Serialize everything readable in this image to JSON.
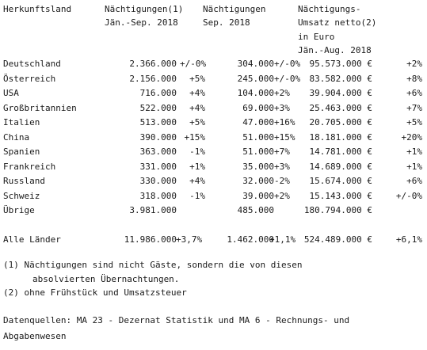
{
  "header": {
    "country": "Herkunftsland",
    "col1": [
      "Nächtigungen(1)",
      "Jän.-Sep. 2018"
    ],
    "col2": [
      "Nächtigungen",
      "Sep. 2018"
    ],
    "col3": [
      "Nächtigungs-",
      "Umsatz netto(2)",
      "in Euro",
      "Jän.-Aug. 2018"
    ]
  },
  "rows": [
    {
      "country": "Deutschland",
      "n1": "2.366.000",
      "p1": "+/-0%",
      "n2": "304.000",
      "p2": "+/-0%",
      "eur": "95.573.000 €",
      "p3": "+2%"
    },
    {
      "country": "Österreich",
      "n1": "2.156.000",
      "p1": "+5%",
      "n2": "245.000",
      "p2": "+/-0%",
      "eur": "83.582.000 €",
      "p3": "+8%"
    },
    {
      "country": "USA",
      "n1": "716.000",
      "p1": "+4%",
      "n2": "104.000",
      "p2": "+2%",
      "eur": "39.904.000 €",
      "p3": "+6%"
    },
    {
      "country": "Großbritannien",
      "n1": "522.000",
      "p1": "+4%",
      "n2": "69.000",
      "p2": "+3%",
      "eur": "25.463.000 €",
      "p3": "+7%"
    },
    {
      "country": "Italien",
      "n1": "513.000",
      "p1": "+5%",
      "n2": "47.000",
      "p2": "+16%",
      "eur": "20.705.000 €",
      "p3": "+5%"
    },
    {
      "country": "China",
      "n1": "390.000",
      "p1": "+15%",
      "n2": "51.000",
      "p2": "+15%",
      "eur": "18.181.000 €",
      "p3": "+20%"
    },
    {
      "country": "Spanien",
      "n1": "363.000",
      "p1": "-1%",
      "n2": "51.000",
      "p2": "+7%",
      "eur": "14.781.000 €",
      "p3": "+1%"
    },
    {
      "country": "Frankreich",
      "n1": "331.000",
      "p1": "+1%",
      "n2": "35.000",
      "p2": "+3%",
      "eur": "14.689.000 €",
      "p3": "+1%"
    },
    {
      "country": "Russland",
      "n1": "330.000",
      "p1": "+4%",
      "n2": "32.000",
      "p2": "-2%",
      "eur": "15.674.000 €",
      "p3": "+6%"
    },
    {
      "country": "Schweiz",
      "n1": "318.000",
      "p1": "-1%",
      "n2": "39.000",
      "p2": "+2%",
      "eur": "15.143.000 €",
      "p3": "+/-0%"
    },
    {
      "country": "Übrige",
      "n1": "3.981.000",
      "p1": "",
      "n2": "485.000",
      "p2": "",
      "eur": "180.794.000 €",
      "p3": ""
    }
  ],
  "total": {
    "country": "Alle Länder",
    "n1": "11.986.000",
    "p1": "+3,7%",
    "n2": "1.462.000",
    "p2": "+1,1%",
    "eur": "524.489.000 €",
    "p3": "+6,1%"
  },
  "notes": {
    "n1_line1": "(1) Nächtigungen sind nicht Gäste, sondern die von diesen",
    "n1_line2": "absolvierten Übernachtungen.",
    "n2": "(2) ohne Frühstück und Umsatzsteuer"
  },
  "sources": {
    "line1": "Datenquellen: MA 23 - Dezernat Statistik und MA 6 - Rechnungs- und",
    "line2": "Abgabenwesen"
  }
}
